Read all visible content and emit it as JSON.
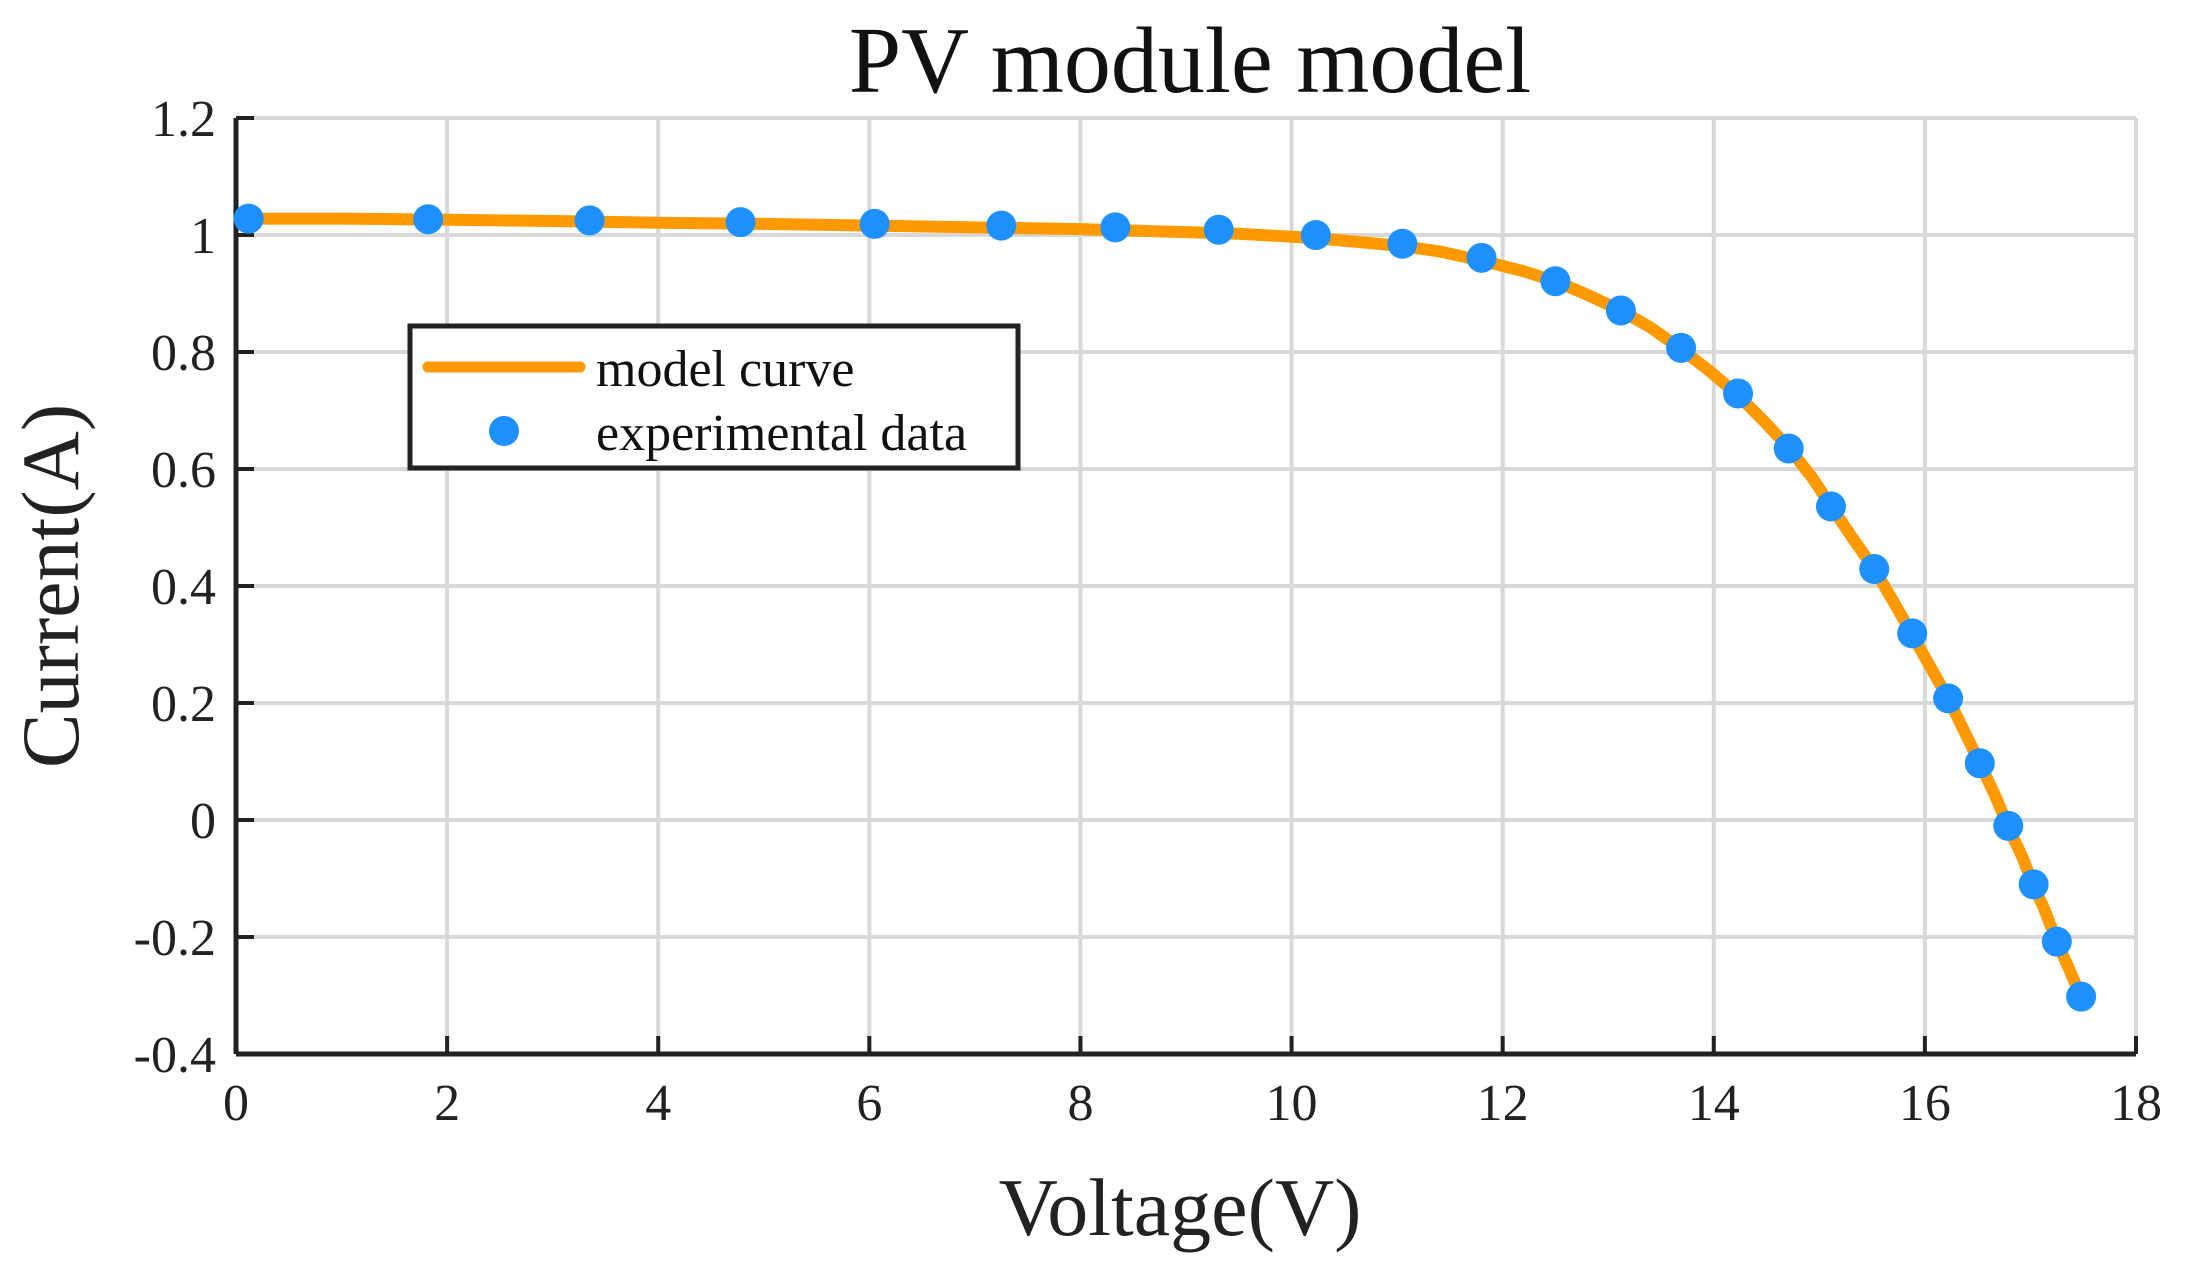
{
  "chart_data": {
    "type": "line",
    "title": "PV module model",
    "xlabel": "Voltage(V)",
    "ylabel": "Current(A)",
    "xlim": [
      0,
      18
    ],
    "ylim": [
      -0.4,
      1.2
    ],
    "x_ticks": [
      0,
      2,
      4,
      6,
      8,
      10,
      12,
      14,
      16,
      18
    ],
    "x_tick_labels": [
      "0",
      "2",
      "4",
      "6",
      "8",
      "10",
      "12",
      "14",
      "16",
      "18"
    ],
    "y_ticks": [
      -0.4,
      -0.2,
      0,
      0.2,
      0.4,
      0.6,
      0.8,
      1,
      1.2
    ],
    "y_tick_labels": [
      "-0.4",
      "-0.2",
      "0",
      "0.2",
      "0.4",
      "0.6",
      "0.8",
      "1",
      "1.2"
    ],
    "grid": true,
    "legend_position": "upper-left",
    "series": [
      {
        "name": "model curve",
        "kind": "line",
        "color": "#FF9900",
        "x": [
          0.12,
          1.0,
          2.0,
          3.0,
          4.0,
          5.0,
          6.0,
          7.0,
          8.0,
          9.0,
          9.5,
          10.2,
          10.7,
          11.05,
          11.4,
          11.8,
          12.2,
          12.5,
          12.8,
          13.12,
          13.4,
          13.69,
          13.95,
          14.23,
          14.48,
          14.71,
          14.93,
          15.11,
          15.31,
          15.52,
          15.7,
          15.88,
          16.05,
          16.22,
          16.37,
          16.52,
          16.66,
          16.79,
          16.92,
          17.03,
          17.13,
          17.25,
          17.36,
          17.48
        ],
        "y": [
          1.028,
          1.028,
          1.026,
          1.024,
          1.021,
          1.019,
          1.016,
          1.013,
          1.01,
          1.005,
          1.002,
          0.995,
          0.987,
          0.981,
          0.972,
          0.956,
          0.938,
          0.921,
          0.898,
          0.871,
          0.842,
          0.805,
          0.769,
          0.726,
          0.681,
          0.636,
          0.586,
          0.537,
          0.483,
          0.429,
          0.374,
          0.317,
          0.262,
          0.208,
          0.153,
          0.097,
          0.044,
          -0.012,
          -0.062,
          -0.112,
          -0.152,
          -0.208,
          -0.252,
          -0.302
        ]
      },
      {
        "name": "experimental data",
        "kind": "scatter",
        "color": "#1E90FF",
        "x": [
          0.12,
          1.82,
          3.35,
          4.78,
          6.05,
          7.25,
          8.33,
          9.31,
          10.23,
          11.05,
          11.8,
          12.5,
          13.12,
          13.69,
          14.23,
          14.71,
          15.11,
          15.52,
          15.88,
          16.22,
          16.52,
          16.79,
          17.03,
          17.25,
          17.48
        ],
        "y": [
          1.028,
          1.027,
          1.025,
          1.022,
          1.019,
          1.016,
          1.013,
          1.009,
          1.0,
          0.985,
          0.961,
          0.921,
          0.871,
          0.807,
          0.729,
          0.635,
          0.536,
          0.429,
          0.319,
          0.208,
          0.097,
          -0.01,
          -0.11,
          -0.208,
          -0.302
        ]
      }
    ]
  }
}
